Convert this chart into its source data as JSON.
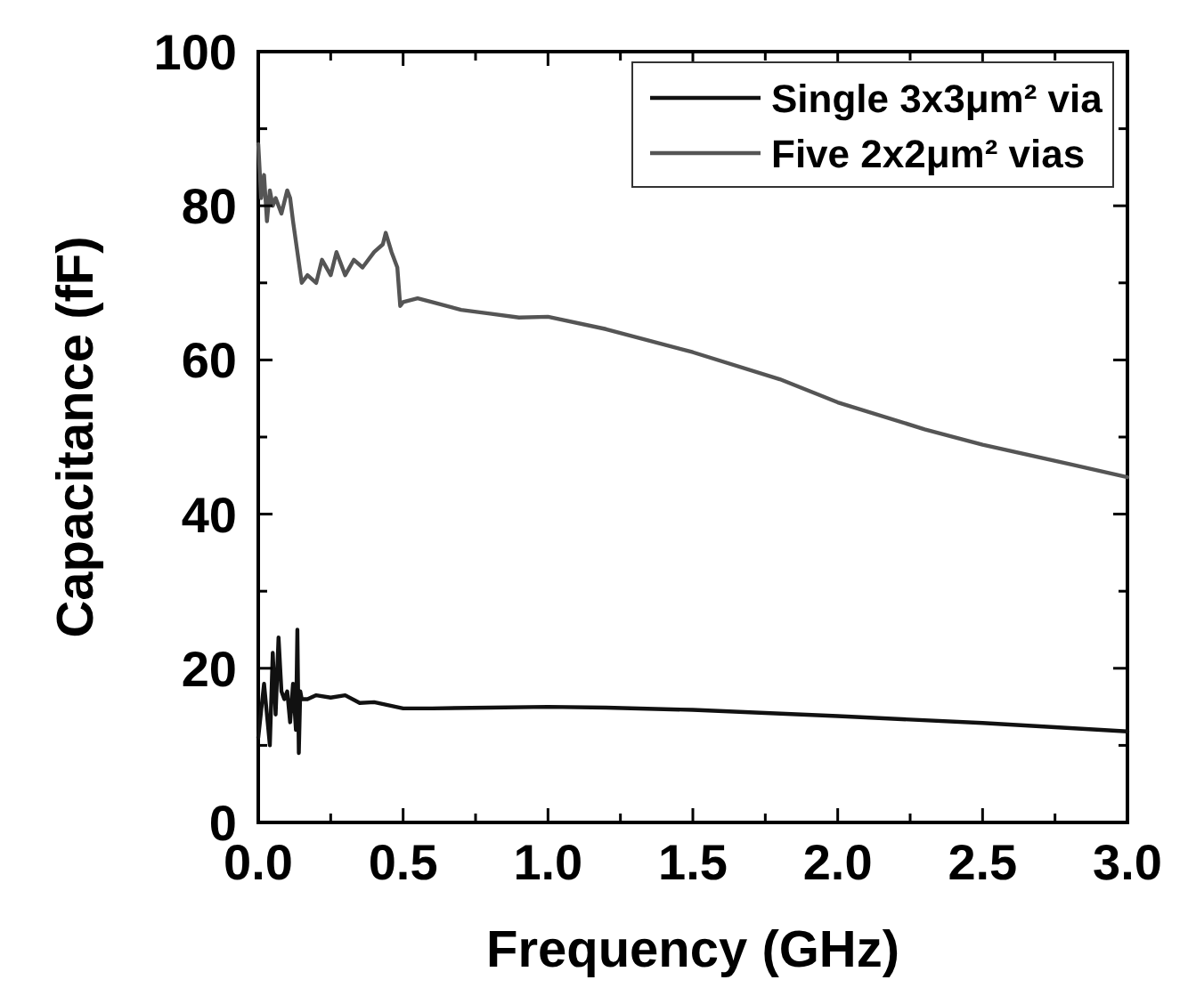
{
  "chart_data": {
    "type": "line",
    "xlabel": "Frequency (GHz)",
    "ylabel": "Capacitance (fF)",
    "xlim": [
      0,
      3
    ],
    "ylim": [
      0,
      100
    ],
    "xticks": [
      {
        "value": 0,
        "label": "0.0"
      },
      {
        "value": 0.25,
        "label": null
      },
      {
        "value": 0.5,
        "label": "0.5"
      },
      {
        "value": 0.75,
        "label": null
      },
      {
        "value": 1,
        "label": "1.0"
      },
      {
        "value": 1.25,
        "label": null
      },
      {
        "value": 1.5,
        "label": "1.5"
      },
      {
        "value": 1.75,
        "label": null
      },
      {
        "value": 2,
        "label": "2.0"
      },
      {
        "value": 2.25,
        "label": null
      },
      {
        "value": 2.5,
        "label": "2.5"
      },
      {
        "value": 2.75,
        "label": null
      },
      {
        "value": 3,
        "label": "3.0"
      }
    ],
    "yticks": [
      0,
      {
        "value": 10,
        "label": null
      },
      20,
      {
        "value": 30,
        "label": null
      },
      40,
      {
        "value": 50,
        "label": null
      },
      60,
      {
        "value": 70,
        "label": null
      },
      80,
      {
        "value": 90,
        "label": null
      },
      100
    ],
    "legend": "top right",
    "grid": false,
    "line_style": "solid",
    "marker": "none",
    "series": [
      {
        "name": "Single 3x3μm² via",
        "color": "#111111",
        "x": [
          0,
          0.02,
          0.04,
          0.05,
          0.06,
          0.07,
          0.08,
          0.09,
          0.1,
          0.11,
          0.12,
          0.13,
          0.135,
          0.14,
          0.145,
          0.15,
          0.17,
          0.2,
          0.25,
          0.3,
          0.35,
          0.4,
          0.45,
          0.5,
          0.6,
          0.8,
          1,
          1.2,
          1.5,
          2,
          2.5,
          3
        ],
        "values": [
          11,
          18,
          10,
          22,
          14,
          24,
          17,
          16,
          17,
          13,
          18,
          12,
          25,
          9,
          17,
          16,
          16,
          16.5,
          16.2,
          16.5,
          15.5,
          15.6,
          15.2,
          14.8,
          14.8,
          14.9,
          15,
          14.9,
          14.6,
          13.8,
          12.9,
          11.8
        ]
      },
      {
        "name": "Five 2x2μm² vias",
        "color": "#555555",
        "x": [
          0,
          0.01,
          0.02,
          0.03,
          0.04,
          0.05,
          0.06,
          0.08,
          0.1,
          0.11,
          0.12,
          0.15,
          0.17,
          0.2,
          0.22,
          0.25,
          0.27,
          0.3,
          0.33,
          0.36,
          0.4,
          0.43,
          0.44,
          0.46,
          0.48,
          0.49,
          0.5,
          0.55,
          0.6,
          0.7,
          0.8,
          0.9,
          1,
          1.2,
          1.5,
          1.8,
          2,
          2.3,
          2.5,
          2.8,
          3
        ],
        "values": [
          88,
          81,
          84,
          78,
          82,
          80,
          81,
          79,
          82,
          81,
          78,
          70,
          71,
          70,
          73,
          71,
          74,
          71,
          73,
          72,
          74,
          75,
          76.5,
          74,
          72,
          67,
          67.5,
          68,
          67.5,
          66.5,
          66,
          65.5,
          65.6,
          64,
          61,
          57.5,
          54.5,
          51,
          49,
          46.5,
          44.8
        ]
      }
    ]
  }
}
